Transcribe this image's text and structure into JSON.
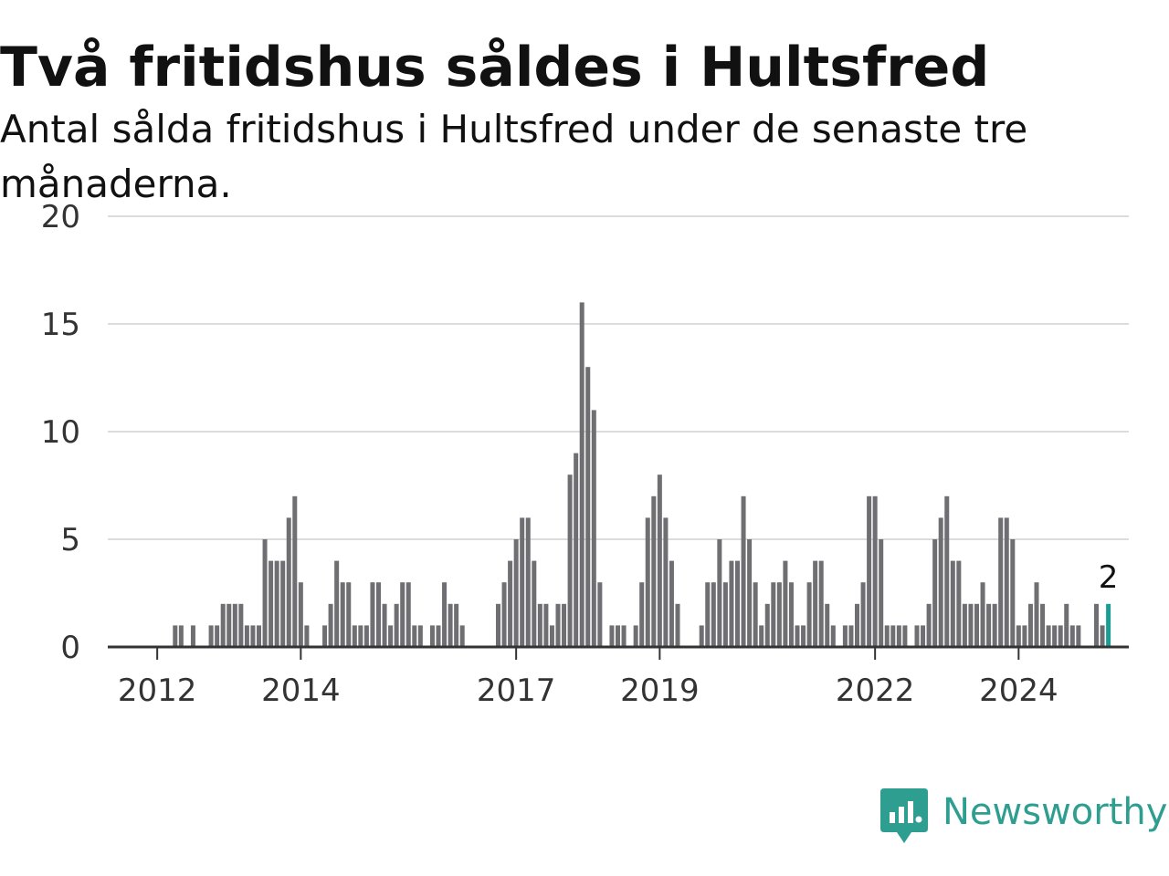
{
  "title": "Två fritidshus såldes i Hultsfred",
  "subtitle": "Antal sålda fritidshus i Hultsfred under de senaste tre månaderna.",
  "brand": {
    "name": "Newsworthy",
    "color": "#2e9e90"
  },
  "chart_data": {
    "type": "bar",
    "x_tick_labels": [
      "2012",
      "2014",
      "2017",
      "2019",
      "2022",
      "2024"
    ],
    "y_ticks": [
      0,
      5,
      10,
      15,
      20
    ],
    "ylim": [
      0,
      20
    ],
    "grid": true,
    "bar_color": "#6e6e73",
    "highlight_color": "#1a9e93",
    "start": "2011-10",
    "values": [
      0,
      0,
      0,
      0,
      0,
      0,
      1,
      1,
      0,
      1,
      0,
      0,
      1,
      1,
      2,
      2,
      2,
      2,
      1,
      1,
      1,
      5,
      4,
      4,
      4,
      6,
      7,
      3,
      1,
      0,
      0,
      1,
      2,
      4,
      3,
      3,
      1,
      1,
      1,
      3,
      3,
      2,
      1,
      2,
      3,
      3,
      1,
      1,
      0,
      1,
      1,
      3,
      2,
      2,
      1,
      0,
      0,
      0,
      0,
      0,
      2,
      3,
      4,
      5,
      6,
      6,
      4,
      2,
      2,
      1,
      2,
      2,
      8,
      9,
      16,
      13,
      11,
      3,
      0,
      1,
      1,
      1,
      0,
      1,
      3,
      6,
      7,
      8,
      6,
      4,
      2,
      0,
      0,
      0,
      1,
      3,
      3,
      5,
      3,
      4,
      4,
      7,
      5,
      3,
      1,
      2,
      3,
      3,
      4,
      3,
      1,
      1,
      3,
      4,
      4,
      2,
      1,
      0,
      1,
      1,
      2,
      3,
      7,
      7,
      5,
      1,
      1,
      1,
      1,
      0,
      1,
      1,
      2,
      5,
      6,
      7,
      4,
      4,
      2,
      2,
      2,
      3,
      2,
      2,
      6,
      6,
      5,
      1,
      1,
      2,
      3,
      2,
      1,
      1,
      1,
      2,
      1,
      1,
      0,
      0,
      2,
      1,
      2
    ],
    "last_value": 2,
    "last_value_label": "2"
  }
}
